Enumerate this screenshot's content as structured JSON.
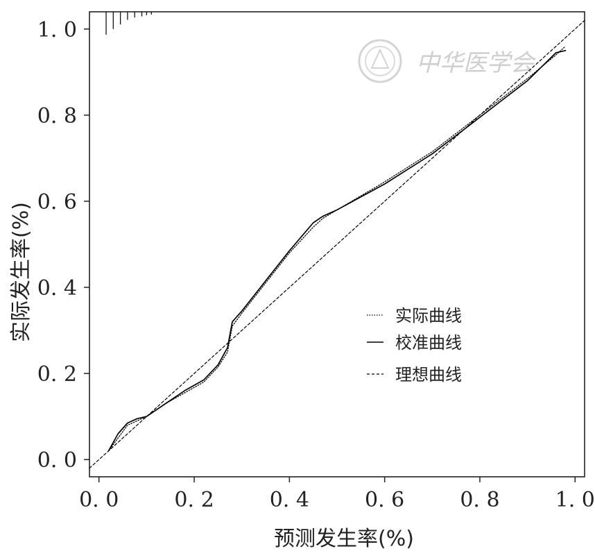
{
  "chart_data": {
    "type": "line",
    "title": "",
    "xlabel": "预测发生率(%)",
    "ylabel": "实际发生率(%)",
    "xlim": [
      -0.02,
      1.02
    ],
    "ylim": [
      -0.04,
      1.04
    ],
    "x_ticks": [
      0.0,
      0.2,
      0.4,
      0.6,
      0.8,
      1.0
    ],
    "x_tick_labels": [
      "0. 0",
      "0. 2",
      "0. 4",
      "0. 6",
      "0. 8",
      "1. 0"
    ],
    "y_ticks": [
      0.0,
      0.2,
      0.4,
      0.6,
      0.8,
      1.0
    ],
    "y_tick_labels": [
      "0. 0",
      "0. 2",
      "0. 4",
      "0. 6",
      "0. 8",
      "1. 0"
    ],
    "grid": false,
    "legend_position": "center-right",
    "series": [
      {
        "name": "实际曲线",
        "style": "dotted",
        "x": [
          0.02,
          0.04,
          0.06,
          0.08,
          0.1,
          0.14,
          0.18,
          0.22,
          0.25,
          0.27,
          0.28,
          0.3,
          0.35,
          0.4,
          0.45,
          0.47,
          0.5,
          0.6,
          0.7,
          0.8,
          0.9,
          0.96,
          0.98
        ],
        "y": [
          0.02,
          0.05,
          0.08,
          0.09,
          0.1,
          0.13,
          0.155,
          0.18,
          0.215,
          0.25,
          0.31,
          0.34,
          0.41,
          0.48,
          0.54,
          0.56,
          0.58,
          0.645,
          0.715,
          0.8,
          0.885,
          0.94,
          0.96
        ]
      },
      {
        "name": "校准曲线",
        "style": "solid",
        "x": [
          0.02,
          0.04,
          0.06,
          0.08,
          0.1,
          0.14,
          0.18,
          0.22,
          0.25,
          0.27,
          0.28,
          0.3,
          0.35,
          0.4,
          0.45,
          0.47,
          0.5,
          0.6,
          0.7,
          0.8,
          0.9,
          0.96,
          0.98
        ],
        "y": [
          0.02,
          0.06,
          0.085,
          0.095,
          0.1,
          0.13,
          0.16,
          0.185,
          0.22,
          0.26,
          0.32,
          0.345,
          0.415,
          0.485,
          0.55,
          0.565,
          0.58,
          0.64,
          0.71,
          0.795,
          0.88,
          0.945,
          0.95
        ]
      },
      {
        "name": "理想曲线",
        "style": "dashed",
        "x": [
          -0.02,
          1.02
        ],
        "y": [
          -0.02,
          1.02
        ]
      }
    ],
    "rug_marks": [
      {
        "x": 0.015,
        "len": 1.0
      },
      {
        "x": 0.03,
        "len": 0.75
      },
      {
        "x": 0.045,
        "len": 0.55
      },
      {
        "x": 0.06,
        "len": 0.35
      },
      {
        "x": 0.075,
        "len": 0.25
      },
      {
        "x": 0.09,
        "len": 0.2
      },
      {
        "x": 0.1,
        "len": 0.15
      },
      {
        "x": 0.11,
        "len": 0.12
      }
    ],
    "colors": {
      "line": "#000000",
      "axis": "#222222",
      "watermark": "#cfcfcf"
    }
  },
  "watermark": {
    "text": "中华医学会"
  }
}
